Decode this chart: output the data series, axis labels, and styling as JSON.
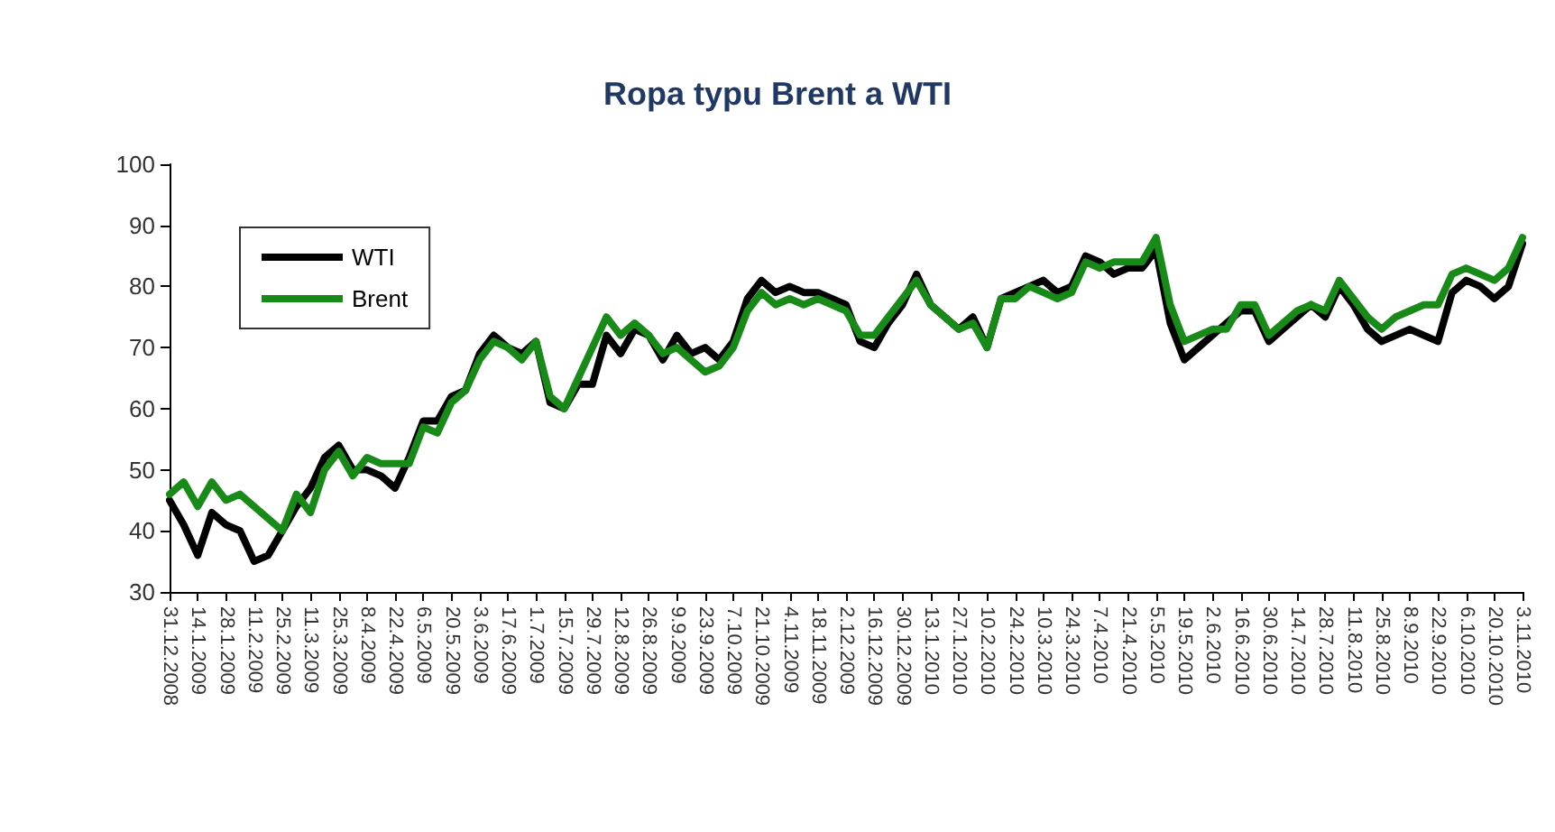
{
  "chart_data": {
    "type": "line",
    "title": "Ropa typu Brent a WTI",
    "x": [
      "2008-12-31",
      "2009-01-07",
      "2009-01-14",
      "2009-01-21",
      "2009-01-28",
      "2009-02-04",
      "2009-02-11",
      "2009-02-18",
      "2009-02-25",
      "2009-03-04",
      "2009-03-11",
      "2009-03-18",
      "2009-03-25",
      "2009-04-01",
      "2009-04-08",
      "2009-04-15",
      "2009-04-22",
      "2009-04-29",
      "2009-05-06",
      "2009-05-13",
      "2009-05-20",
      "2009-05-27",
      "2009-06-03",
      "2009-06-10",
      "2009-06-17",
      "2009-06-24",
      "2009-07-01",
      "2009-07-08",
      "2009-07-15",
      "2009-07-22",
      "2009-07-29",
      "2009-08-05",
      "2009-08-12",
      "2009-08-19",
      "2009-08-26",
      "2009-09-02",
      "2009-09-09",
      "2009-09-16",
      "2009-09-23",
      "2009-09-30",
      "2009-10-07",
      "2009-10-14",
      "2009-10-21",
      "2009-10-28",
      "2009-11-04",
      "2009-11-11",
      "2009-11-18",
      "2009-11-25",
      "2009-12-02",
      "2009-12-09",
      "2009-12-16",
      "2009-12-23",
      "2009-12-30",
      "2010-01-06",
      "2010-01-13",
      "2010-01-20",
      "2010-01-27",
      "2010-02-03",
      "2010-02-10",
      "2010-02-17",
      "2010-02-24",
      "2010-03-03",
      "2010-03-10",
      "2010-03-17",
      "2010-03-24",
      "2010-03-31",
      "2010-04-07",
      "2010-04-14",
      "2010-04-21",
      "2010-04-28",
      "2010-05-05",
      "2010-05-12",
      "2010-05-19",
      "2010-05-26",
      "2010-06-02",
      "2010-06-09",
      "2010-06-16",
      "2010-06-23",
      "2010-06-30",
      "2010-07-07",
      "2010-07-14",
      "2010-07-21",
      "2010-07-28",
      "2010-08-04",
      "2010-08-11",
      "2010-08-18",
      "2010-08-25",
      "2010-09-01",
      "2010-09-08",
      "2010-09-15",
      "2010-09-22",
      "2010-09-29",
      "2010-10-06",
      "2010-10-13",
      "2010-10-20",
      "2010-10-27",
      "2010-11-03"
    ],
    "series": [
      {
        "name": "WTI",
        "color": "#000000",
        "values": [
          45,
          41,
          36,
          43,
          41,
          40,
          35,
          36,
          40,
          44,
          47,
          52,
          54,
          50,
          50,
          49,
          47,
          52,
          58,
          58,
          62,
          63,
          69,
          72,
          70,
          69,
          71,
          61,
          60,
          64,
          64,
          72,
          69,
          73,
          72,
          68,
          72,
          69,
          70,
          68,
          71,
          78,
          81,
          79,
          80,
          79,
          79,
          78,
          77,
          71,
          70,
          74,
          77,
          82,
          77,
          75,
          73,
          75,
          70,
          78,
          79,
          80,
          81,
          79,
          80,
          85,
          84,
          82,
          83,
          83,
          86,
          74,
          68,
          70,
          72,
          74,
          76,
          76,
          71,
          73,
          75,
          77,
          75,
          80,
          77,
          73,
          71,
          72,
          73,
          72,
          71,
          79,
          81,
          80,
          78,
          80,
          87
        ]
      },
      {
        "name": "Brent",
        "color": "#178a17",
        "values": [
          46,
          48,
          44,
          48,
          45,
          46,
          44,
          42,
          40,
          46,
          43,
          50,
          53,
          49,
          52,
          51,
          51,
          51,
          57,
          56,
          61,
          63,
          68,
          71,
          70,
          68,
          71,
          62,
          60,
          65,
          70,
          75,
          72,
          74,
          72,
          69,
          70,
          68,
          66,
          67,
          70,
          76,
          79,
          77,
          78,
          77,
          78,
          77,
          76,
          72,
          72,
          75,
          78,
          81,
          77,
          75,
          73,
          74,
          70,
          78,
          78,
          80,
          79,
          78,
          79,
          84,
          83,
          84,
          84,
          84,
          88,
          77,
          71,
          72,
          73,
          73,
          77,
          77,
          72,
          74,
          76,
          77,
          76,
          81,
          78,
          75,
          73,
          75,
          76,
          77,
          77,
          82,
          83,
          82,
          81,
          83,
          88
        ]
      }
    ],
    "xlim": [
      "2008-12-31",
      "2010-11-03"
    ],
    "xticks": [
      {
        "value": "2008-12-31",
        "label": "31.12.2008"
      },
      {
        "value": "2009-01-14",
        "label": "14.1.2009"
      },
      {
        "value": "2009-01-28",
        "label": "28.1.2009"
      },
      {
        "value": "2009-02-11",
        "label": "11.2.2009"
      },
      {
        "value": "2009-02-25",
        "label": "25.2.2009"
      },
      {
        "value": "2009-03-11",
        "label": "11.3.2009"
      },
      {
        "value": "2009-03-25",
        "label": "25.3.2009"
      },
      {
        "value": "2009-04-08",
        "label": "8.4.2009"
      },
      {
        "value": "2009-04-22",
        "label": "22.4.2009"
      },
      {
        "value": "2009-05-06",
        "label": "6.5.2009"
      },
      {
        "value": "2009-05-20",
        "label": "20.5.2009"
      },
      {
        "value": "2009-06-03",
        "label": "3.6.2009"
      },
      {
        "value": "2009-06-17",
        "label": "17.6.2009"
      },
      {
        "value": "2009-07-01",
        "label": "1.7.2009"
      },
      {
        "value": "2009-07-15",
        "label": "15.7.2009"
      },
      {
        "value": "2009-07-29",
        "label": "29.7.2009"
      },
      {
        "value": "2009-08-12",
        "label": "12.8.2009"
      },
      {
        "value": "2009-08-26",
        "label": "26.8.2009"
      },
      {
        "value": "2009-09-09",
        "label": "9.9.2009"
      },
      {
        "value": "2009-09-23",
        "label": "23.9.2009"
      },
      {
        "value": "2009-10-07",
        "label": "7.10.2009"
      },
      {
        "value": "2009-10-21",
        "label": "21.10.2009"
      },
      {
        "value": "2009-11-04",
        "label": "4.11.2009"
      },
      {
        "value": "2009-11-18",
        "label": "18.11.2009"
      },
      {
        "value": "2009-12-02",
        "label": "2.12.2009"
      },
      {
        "value": "2009-12-16",
        "label": "16.12.2009"
      },
      {
        "value": "2009-12-30",
        "label": "30.12.2009"
      },
      {
        "value": "2010-01-13",
        "label": "13.1.2010"
      },
      {
        "value": "2010-01-27",
        "label": "27.1.2010"
      },
      {
        "value": "2010-02-10",
        "label": "10.2.2010"
      },
      {
        "value": "2010-02-24",
        "label": "24.2.2010"
      },
      {
        "value": "2010-03-10",
        "label": "10.3.2010"
      },
      {
        "value": "2010-03-24",
        "label": "24.3.2010"
      },
      {
        "value": "2010-04-07",
        "label": "7.4.2010"
      },
      {
        "value": "2010-04-21",
        "label": "21.4.2010"
      },
      {
        "value": "2010-05-05",
        "label": "5.5.2010"
      },
      {
        "value": "2010-05-19",
        "label": "19.5.2010"
      },
      {
        "value": "2010-06-02",
        "label": "2.6.2010"
      },
      {
        "value": "2010-06-16",
        "label": "16.6.2010"
      },
      {
        "value": "2010-06-30",
        "label": "30.6.2010"
      },
      {
        "value": "2010-07-14",
        "label": "14.7.2010"
      },
      {
        "value": "2010-07-28",
        "label": "28.7.2010"
      },
      {
        "value": "2010-08-11",
        "label": "11.8.2010"
      },
      {
        "value": "2010-08-25",
        "label": "25.8.2010"
      },
      {
        "value": "2010-09-08",
        "label": "8.9.2010"
      },
      {
        "value": "2010-09-22",
        "label": "22.9.2010"
      },
      {
        "value": "2010-10-06",
        "label": "6.10.2010"
      },
      {
        "value": "2010-10-20",
        "label": "20.10.2010"
      },
      {
        "value": "2010-11-03",
        "label": "3.11.2010"
      }
    ],
    "ylim": [
      30,
      100
    ],
    "yticks": [
      30,
      40,
      50,
      60,
      70,
      80,
      90,
      100
    ],
    "grid": false,
    "legend": "top left",
    "marker": "none",
    "line_style": "solid"
  }
}
